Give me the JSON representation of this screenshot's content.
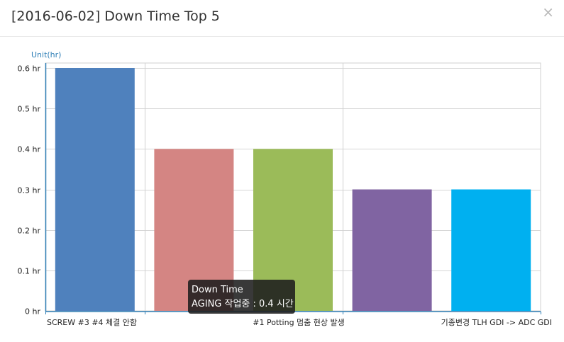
{
  "dialog": {
    "title": "[2016-06-02] Down Time Top 5",
    "close_icon": "close-icon",
    "close_glyph": "×"
  },
  "chart_data": {
    "type": "bar",
    "ylabel": "Unit(hr)",
    "ylim": [
      0,
      0.6
    ],
    "yticks": [
      "0 hr",
      "0.1 hr",
      "0.2 hr",
      "0.3 hr",
      "0.4 hr",
      "0.5 hr",
      "0.6 hr"
    ],
    "categories": [
      "SCREW #3 #4 체결  안함",
      "",
      "#1 Potting 멈춤 현상 발생",
      "",
      "기종변경  TLH GDI  -> ADC GDI"
    ],
    "values": [
      0.6,
      0.4,
      0.4,
      0.3,
      0.3
    ],
    "colors": [
      "#4f81bd",
      "#d48583",
      "#9bbb59",
      "#8064a2",
      "#00b0f0"
    ],
    "grid": true
  },
  "tooltip": {
    "title": "Down Time",
    "text": "AGING 작업중 : 0.4 시간"
  }
}
